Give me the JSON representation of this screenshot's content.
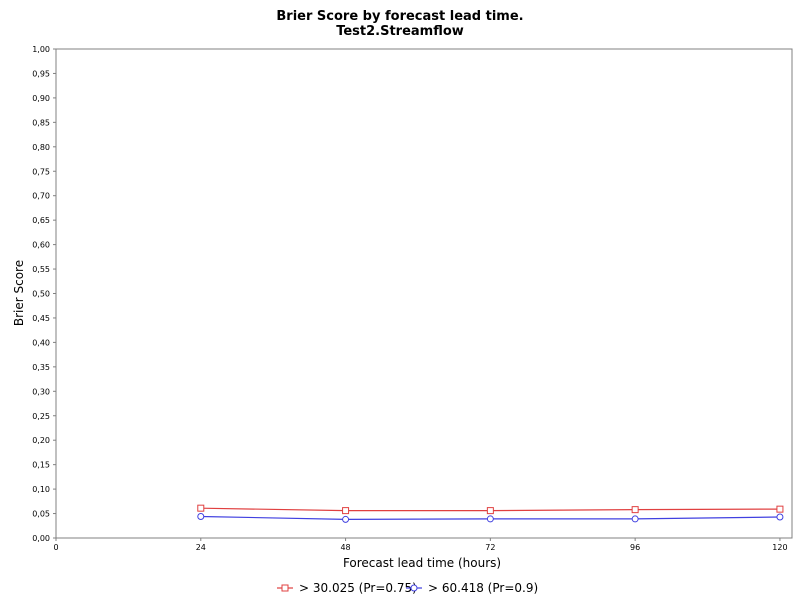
{
  "chart_data": {
    "type": "line",
    "title": "Brier Score by forecast lead time.",
    "subtitle": "Test2.Streamflow",
    "xlabel": "Forecast lead time (hours)",
    "ylabel": "Brier Score",
    "xlim": [
      0,
      122
    ],
    "ylim": [
      0,
      1.0
    ],
    "x_ticks": [
      "0",
      "24",
      "48",
      "72",
      "96",
      "120"
    ],
    "y_ticks": [
      "0,00",
      "0,05",
      "0,10",
      "0,15",
      "0,20",
      "0,25",
      "0,30",
      "0,35",
      "0,40",
      "0,45",
      "0,50",
      "0,55",
      "0,60",
      "0,65",
      "0,70",
      "0,75",
      "0,80",
      "0,85",
      "0,90",
      "0,95",
      "1,00"
    ],
    "grid": false,
    "legend": "bottom",
    "series": [
      {
        "name": "> 30.025 (Pr=0.75)",
        "color": "#e04040",
        "marker": "square",
        "x": [
          24,
          48,
          72,
          96,
          120
        ],
        "values": [
          0.061,
          0.056,
          0.056,
          0.058,
          0.059
        ]
      },
      {
        "name": "> 60.418 (Pr=0.9)",
        "color": "#4040e0",
        "marker": "circle",
        "x": [
          24,
          48,
          72,
          96,
          120
        ],
        "values": [
          0.044,
          0.038,
          0.039,
          0.039,
          0.043
        ]
      }
    ]
  }
}
